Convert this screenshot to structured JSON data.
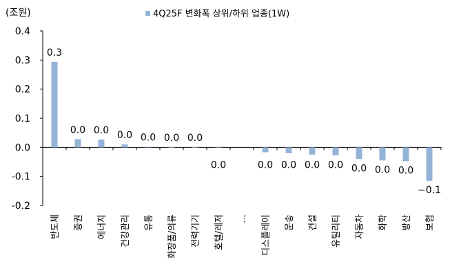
{
  "chart_data": {
    "type": "bar",
    "title": "",
    "unit_label": "(조원)",
    "legend": {
      "placement": "top-center",
      "entries": [
        "4Q25F 변화폭 상위/하위 업종(1W)"
      ]
    },
    "ylim": [
      -0.2,
      0.4
    ],
    "yticks": [
      "0.4",
      "0.3",
      "0.2",
      "0.1",
      "0.0",
      "-0.1",
      "-0.2"
    ],
    "ytick_values": [
      0.4,
      0.3,
      0.2,
      0.1,
      0.0,
      -0.1,
      -0.2
    ],
    "grid": false,
    "categories": [
      "반도체",
      "증권",
      "에너지",
      "건강관리",
      "유통",
      "화장품/의류",
      "전력기기",
      "호텔/레저",
      "…",
      "디스플레이",
      "운송",
      "건설",
      "유틸리티",
      "자동차",
      "화학",
      "방산",
      "보험"
    ],
    "series": [
      {
        "name": "4Q25F 변화폭 상위/하위 업종(1W)",
        "color": "#95B3D7",
        "values": [
          0.294,
          0.028,
          0.027,
          0.01,
          0.002,
          0.0005,
          0.0003,
          -0.001,
          null,
          -0.017,
          -0.02,
          -0.025,
          -0.028,
          -0.04,
          -0.045,
          -0.048,
          -0.115
        ],
        "data_labels": [
          "0.3",
          "0.0",
          "0.0",
          "0.0",
          "0.0",
          "0.0",
          "0.0",
          "0.0",
          "",
          "0.0",
          "0.0",
          "0.0",
          "0.0",
          "0.0",
          "0.0",
          "0.0",
          "−0.1"
        ]
      }
    ]
  }
}
